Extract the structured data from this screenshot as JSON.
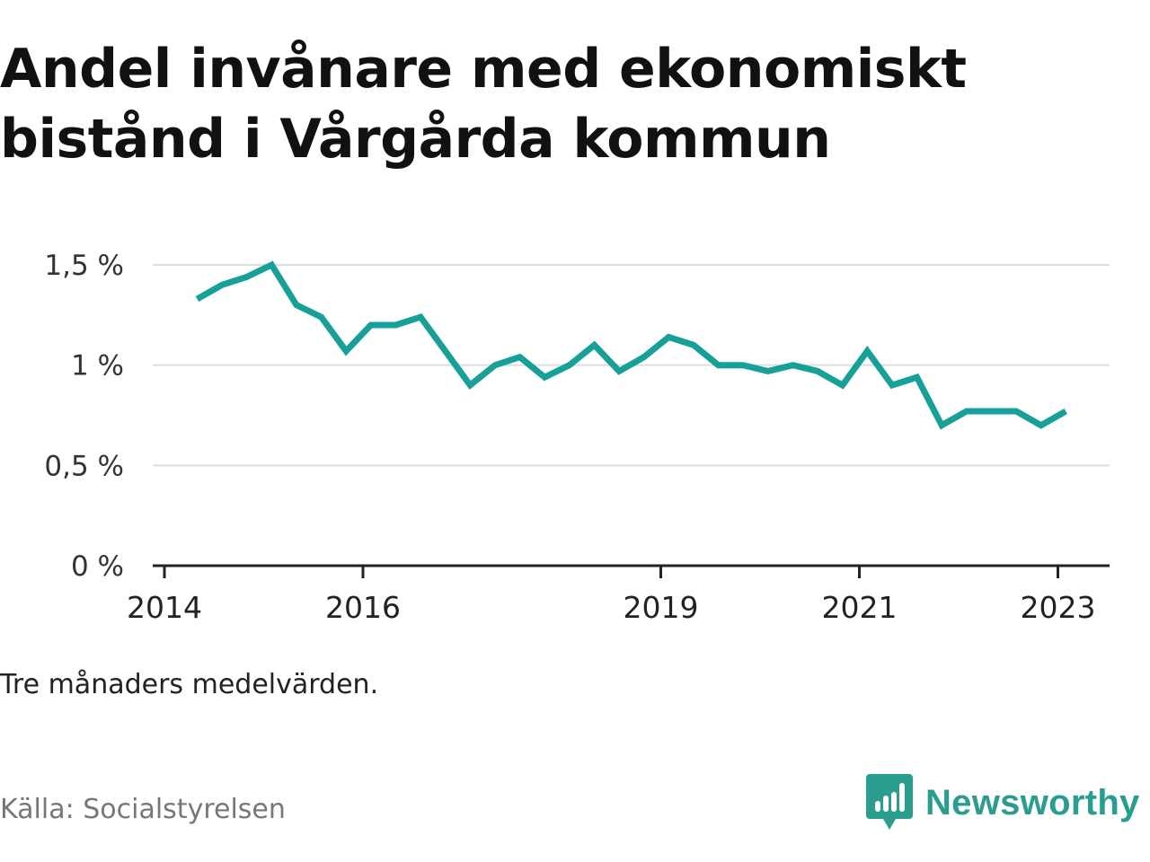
{
  "title": "Andel invånare med ekonomiskt bistånd i Vårgårda kommun",
  "note": "Tre månaders medelvärden.",
  "source": "Källa: Socialstyrelsen",
  "brand": {
    "name": "Newsworthy",
    "icon": "newsworthy-logo-icon"
  },
  "colors": {
    "line": "#16a098",
    "grid": "#dddddd",
    "axis": "#222222",
    "brand": "#2a9d8f",
    "title": "#111111"
  },
  "chart_data": {
    "type": "line",
    "title": "Andel invånare med ekonomiskt bistånd i Vårgårda kommun",
    "xlabel": "",
    "ylabel": "",
    "ylim": [
      0,
      1.5
    ],
    "xlim": [
      2014,
      2023.5
    ],
    "y_ticks": [
      {
        "value": 0,
        "label": "0 %"
      },
      {
        "value": 0.5,
        "label": "0,5 %"
      },
      {
        "value": 1,
        "label": "1 %"
      },
      {
        "value": 1.5,
        "label": "1,5 %"
      }
    ],
    "x_ticks": [
      {
        "value": 2014,
        "label": "2014"
      },
      {
        "value": 2016,
        "label": "2016"
      },
      {
        "value": 2019,
        "label": "2019"
      },
      {
        "value": 2021,
        "label": "2021"
      },
      {
        "value": 2023,
        "label": "2023"
      }
    ],
    "series": [
      {
        "name": "Andel invånare med ekonomiskt bistånd",
        "x": [
          2014.33,
          2014.58,
          2014.83,
          2015.08,
          2015.33,
          2015.58,
          2015.83,
          2016.08,
          2016.33,
          2016.58,
          2016.83,
          2017.08,
          2017.33,
          2017.58,
          2017.83,
          2018.08,
          2018.33,
          2018.58,
          2018.83,
          2019.08,
          2019.33,
          2019.58,
          2019.83,
          2020.08,
          2020.33,
          2020.58,
          2020.83,
          2021.08,
          2021.33,
          2021.58,
          2021.83,
          2022.08,
          2022.33,
          2022.58,
          2022.83,
          2023.08
        ],
        "values": [
          1.33,
          1.4,
          1.44,
          1.5,
          1.3,
          1.24,
          1.07,
          1.2,
          1.2,
          1.24,
          1.07,
          0.9,
          1.0,
          1.04,
          0.94,
          1.0,
          1.1,
          0.97,
          1.04,
          1.14,
          1.1,
          1.0,
          1.0,
          0.97,
          1.0,
          0.97,
          0.9,
          1.07,
          0.9,
          0.94,
          0.7,
          0.77,
          0.77,
          0.77,
          0.7,
          0.77
        ]
      }
    ]
  }
}
